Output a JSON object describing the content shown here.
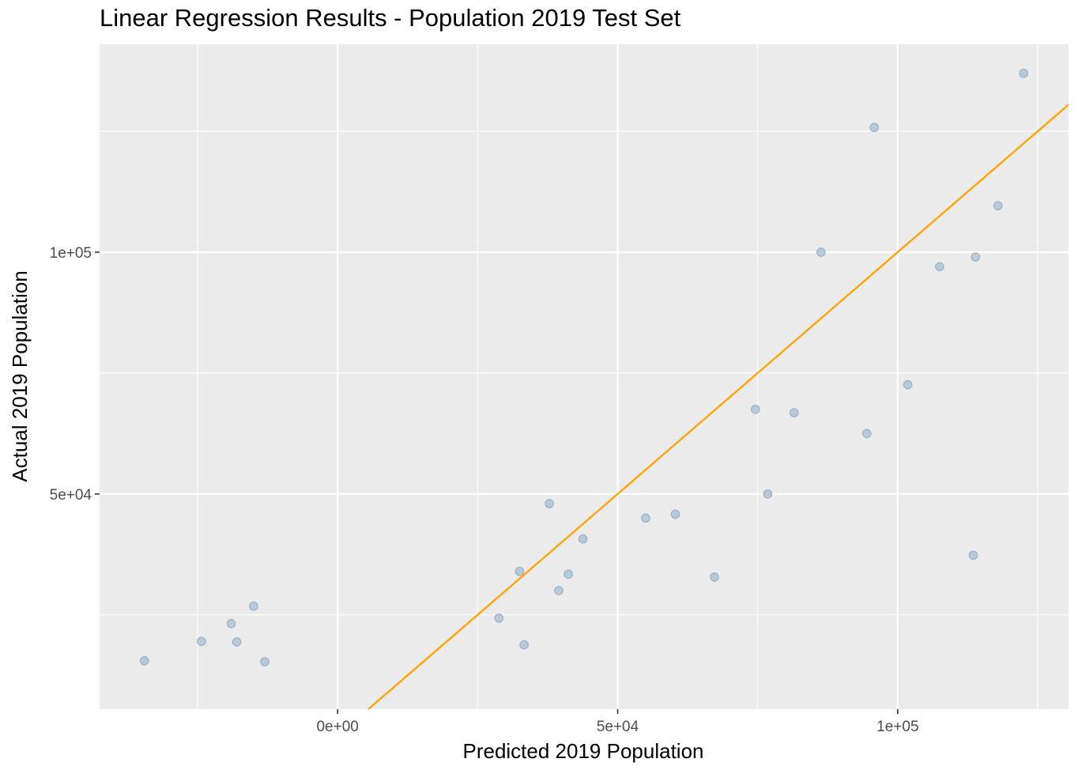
{
  "chart_data": {
    "type": "scatter",
    "title": "Linear Regression Results - Population 2019 Test Set",
    "xlabel": "Predicted 2019 Population",
    "ylabel": "Actual 2019 Population",
    "xlim": [
      -42500,
      130500
    ],
    "ylim": [
      5500,
      143000
    ],
    "x_ticks": [
      {
        "value": 0,
        "label": "0e+00"
      },
      {
        "value": 50000,
        "label": "5e+04"
      },
      {
        "value": 100000,
        "label": "1e+05"
      }
    ],
    "y_ticks": [
      {
        "value": 50000,
        "label": "5e+04"
      },
      {
        "value": 100000,
        "label": "1e+05"
      }
    ],
    "x_minor_breaks": [
      -25000,
      25000,
      75000,
      125000
    ],
    "y_minor_breaks": [
      25000,
      75000,
      125000
    ],
    "grid": true,
    "colors": {
      "panel_background": "#EBEBEB",
      "grid_line": "#FFFFFF",
      "point_fill": "#B5C7D6",
      "point_stroke": "#9FB4C7",
      "fit_line": "#FFA500"
    },
    "fit_line": {
      "slope": 1,
      "intercept": 0
    },
    "points": [
      {
        "x": -34500,
        "y": 15500
      },
      {
        "x": -24300,
        "y": 19500
      },
      {
        "x": -19000,
        "y": 23200
      },
      {
        "x": -18000,
        "y": 19400
      },
      {
        "x": -15000,
        "y": 26800
      },
      {
        "x": -13000,
        "y": 15300
      },
      {
        "x": 28800,
        "y": 24300
      },
      {
        "x": 32500,
        "y": 34000
      },
      {
        "x": 33300,
        "y": 18800
      },
      {
        "x": 37800,
        "y": 48000
      },
      {
        "x": 39500,
        "y": 30000
      },
      {
        "x": 41200,
        "y": 33400
      },
      {
        "x": 43800,
        "y": 40700
      },
      {
        "x": 55000,
        "y": 45000
      },
      {
        "x": 60300,
        "y": 45800
      },
      {
        "x": 67300,
        "y": 32800
      },
      {
        "x": 74600,
        "y": 67500
      },
      {
        "x": 76800,
        "y": 50000
      },
      {
        "x": 81500,
        "y": 66800
      },
      {
        "x": 86300,
        "y": 100000
      },
      {
        "x": 94500,
        "y": 62500
      },
      {
        "x": 95800,
        "y": 125800
      },
      {
        "x": 101800,
        "y": 72600
      },
      {
        "x": 107500,
        "y": 97000
      },
      {
        "x": 113500,
        "y": 37300
      },
      {
        "x": 113900,
        "y": 99000
      },
      {
        "x": 117900,
        "y": 109600
      },
      {
        "x": 122500,
        "y": 137000
      }
    ]
  }
}
